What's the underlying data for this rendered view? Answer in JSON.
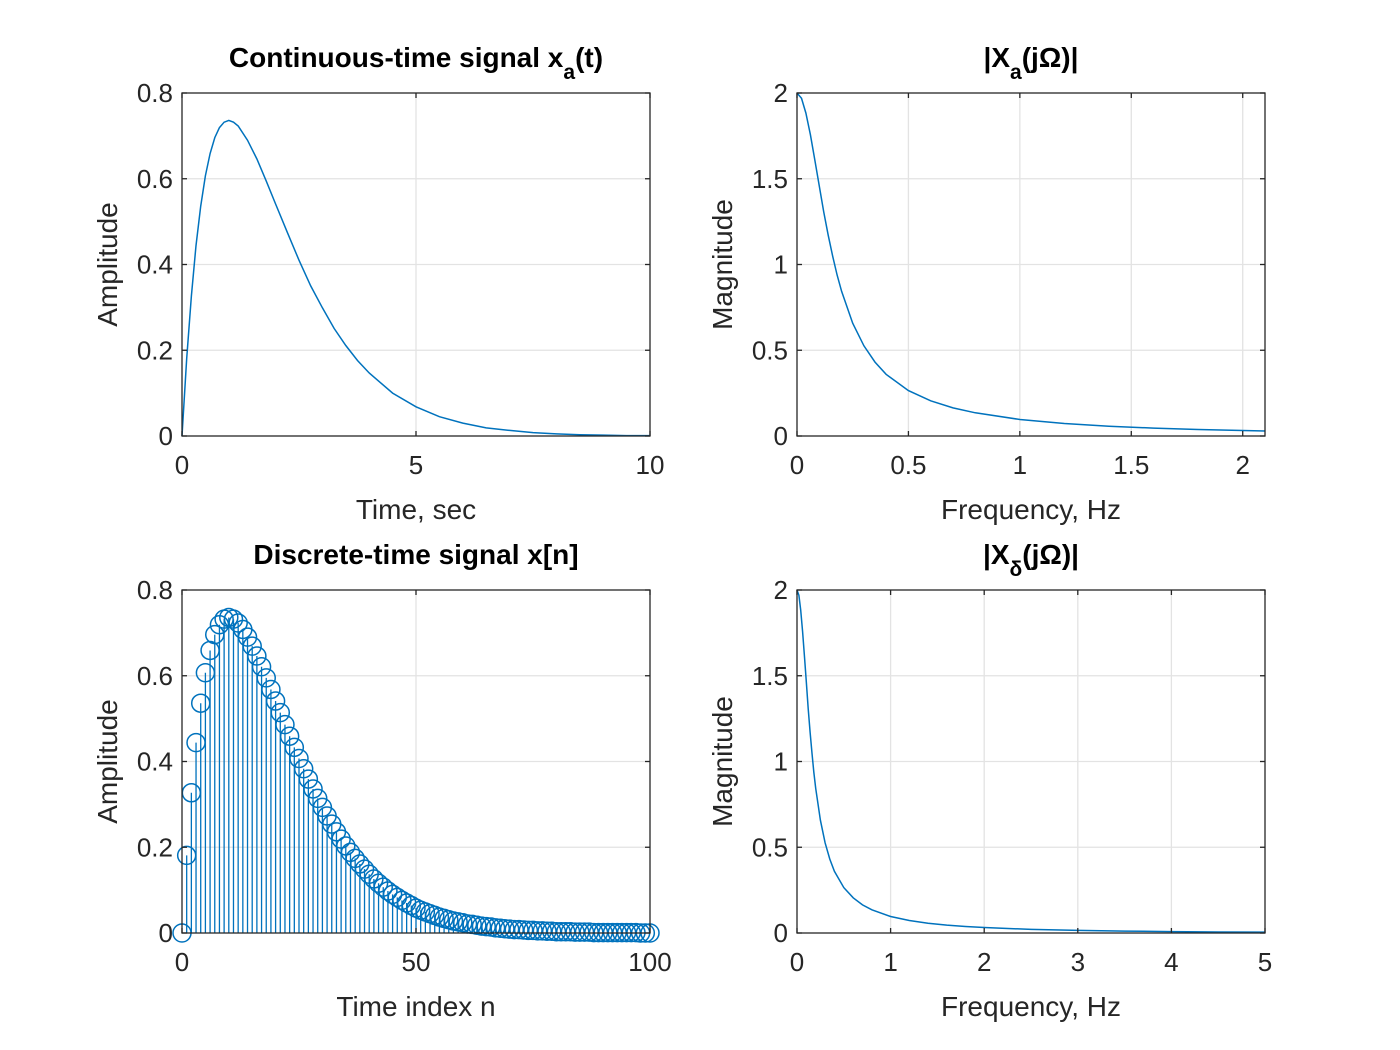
{
  "chart_data": [
    {
      "id": "ax1",
      "type": "line",
      "title": "Continuous-time signal x_a(t)",
      "title_parts": {
        "pre": "Continuous-time signal x",
        "sub": "a",
        "post": "(t)"
      },
      "xlabel": "Time, sec",
      "ylabel": "Amplitude",
      "xlim": [
        0,
        10
      ],
      "ylim": [
        0,
        0.8
      ],
      "xticks": [
        0,
        5,
        10
      ],
      "xticklabels": [
        "0",
        "5",
        "10"
      ],
      "yticks": [
        0,
        0.2,
        0.4,
        0.6,
        0.8
      ],
      "yticklabels": [
        "0",
        "0.2",
        "0.4",
        "0.6",
        "0.8"
      ],
      "grid": true,
      "series": [
        {
          "x": [
            0,
            0.1,
            0.2,
            0.3,
            0.4,
            0.5,
            0.6,
            0.7,
            0.8,
            0.9,
            1.0,
            1.1,
            1.2,
            1.4,
            1.6,
            1.8,
            2.0,
            2.25,
            2.5,
            2.75,
            3.0,
            3.25,
            3.5,
            3.75,
            4.0,
            4.5,
            5.0,
            5.5,
            6.0,
            6.5,
            7.0,
            7.5,
            8.0,
            8.5,
            9.0,
            9.5,
            10.0
          ],
          "y": [
            0,
            0.181,
            0.327,
            0.444,
            0.536,
            0.607,
            0.659,
            0.696,
            0.719,
            0.732,
            0.736,
            0.732,
            0.723,
            0.69,
            0.646,
            0.595,
            0.541,
            0.475,
            0.41,
            0.35,
            0.299,
            0.251,
            0.211,
            0.176,
            0.147,
            0.1,
            0.068,
            0.045,
            0.03,
            0.019,
            0.013,
            0.008,
            0.005,
            0.003,
            0.002,
            0.001,
            0.001
          ]
        }
      ]
    },
    {
      "id": "ax2",
      "type": "line",
      "title": "|X_a(jΩ)|",
      "title_parts": {
        "pre": "|X",
        "sub": "a",
        "post": "(jΩ)|"
      },
      "xlabel": "Frequency, Hz",
      "ylabel": "Magnitude",
      "xlim": [
        0,
        2.1
      ],
      "ylim": [
        0,
        2
      ],
      "xticks": [
        0,
        0.5,
        1,
        1.5,
        2
      ],
      "xticklabels": [
        "0",
        "0.5",
        "1",
        "1.5",
        "2"
      ],
      "yticks": [
        0,
        0.5,
        1,
        1.5,
        2
      ],
      "yticklabels": [
        "0",
        "0.5",
        "1",
        "1.5",
        "2"
      ],
      "grid": true,
      "series": [
        {
          "x": [
            0,
            0.02,
            0.04,
            0.06,
            0.08,
            0.1,
            0.12,
            0.14,
            0.16,
            0.18,
            0.2,
            0.25,
            0.3,
            0.35,
            0.4,
            0.5,
            0.6,
            0.7,
            0.8,
            1.0,
            1.2,
            1.4,
            1.6,
            1.8,
            2.0,
            2.1
          ],
          "y": [
            2.0,
            1.969,
            1.883,
            1.757,
            1.61,
            1.457,
            1.308,
            1.171,
            1.048,
            0.939,
            0.844,
            0.658,
            0.526,
            0.431,
            0.36,
            0.265,
            0.205,
            0.164,
            0.135,
            0.096,
            0.073,
            0.057,
            0.046,
            0.038,
            0.032,
            0.029
          ]
        }
      ]
    },
    {
      "id": "ax3",
      "type": "stem",
      "title": "Discrete-time signal x[n]",
      "title_parts": {
        "pre": "Discrete-time signal x[n]",
        "sub": "",
        "post": ""
      },
      "xlabel": "Time index n",
      "ylabel": "Amplitude",
      "xlim": [
        0,
        100
      ],
      "ylim": [
        0,
        0.8
      ],
      "xticks": [
        0,
        50,
        100
      ],
      "xticklabels": [
        "0",
        "50",
        "100"
      ],
      "yticks": [
        0,
        0.2,
        0.4,
        0.6,
        0.8
      ],
      "yticklabels": [
        "0",
        "0.2",
        "0.4",
        "0.6",
        "0.8"
      ],
      "grid": true,
      "series": [
        {
          "n": [
            0,
            1,
            2,
            3,
            4,
            5,
            6,
            7,
            8,
            9,
            10,
            11,
            12,
            13,
            14,
            15,
            16,
            17,
            18,
            19,
            20,
            21,
            22,
            23,
            24,
            25,
            26,
            27,
            28,
            29,
            30,
            31,
            32,
            33,
            34,
            35,
            36,
            37,
            38,
            39,
            40,
            41,
            42,
            43,
            44,
            45,
            46,
            47,
            48,
            49,
            50,
            51,
            52,
            53,
            54,
            55,
            56,
            57,
            58,
            59,
            60,
            61,
            62,
            63,
            64,
            65,
            66,
            67,
            68,
            69,
            70,
            71,
            72,
            73,
            74,
            75,
            76,
            77,
            78,
            79,
            80,
            81,
            82,
            83,
            84,
            85,
            86,
            87,
            88,
            89,
            90,
            91,
            92,
            93,
            94,
            95,
            96,
            97,
            98,
            99,
            100
          ],
          "y": [
            0,
            0.181,
            0.327,
            0.444,
            0.536,
            0.607,
            0.659,
            0.696,
            0.719,
            0.732,
            0.736,
            0.732,
            0.723,
            0.708,
            0.69,
            0.669,
            0.646,
            0.621,
            0.595,
            0.568,
            0.541,
            0.514,
            0.486,
            0.459,
            0.433,
            0.407,
            0.383,
            0.359,
            0.336,
            0.314,
            0.293,
            0.273,
            0.254,
            0.236,
            0.219,
            0.203,
            0.188,
            0.174,
            0.161,
            0.149,
            0.137,
            0.126,
            0.116,
            0.107,
            0.098,
            0.09,
            0.083,
            0.076,
            0.07,
            0.064,
            0.058,
            0.053,
            0.049,
            0.045,
            0.041,
            0.037,
            0.034,
            0.031,
            0.028,
            0.026,
            0.024,
            0.021,
            0.02,
            0.018,
            0.016,
            0.015,
            0.014,
            0.012,
            0.011,
            0.01,
            0.009,
            0.008,
            0.008,
            0.007,
            0.006,
            0.006,
            0.005,
            0.005,
            0.004,
            0.004,
            0.003,
            0.003,
            0.003,
            0.003,
            0.002,
            0.002,
            0.002,
            0.002,
            0.001,
            0.001,
            0.001,
            0.001,
            0.001,
            0.001,
            0.001,
            0.001,
            0.001,
            0.001,
            0.0,
            0.0,
            0.0
          ]
        }
      ]
    },
    {
      "id": "ax4",
      "type": "line",
      "title": "|X_δ(jΩ)|",
      "title_parts": {
        "pre": "|X",
        "sub": "δ",
        "post": "(jΩ)|"
      },
      "xlabel": "Frequency, Hz",
      "ylabel": "Magnitude",
      "xlim": [
        0,
        5
      ],
      "ylim": [
        0,
        2
      ],
      "xticks": [
        0,
        1,
        2,
        3,
        4,
        5
      ],
      "xticklabels": [
        "0",
        "1",
        "2",
        "3",
        "4",
        "5"
      ],
      "yticks": [
        0,
        0.5,
        1,
        1.5,
        2
      ],
      "yticklabels": [
        "0",
        "0.5",
        "1",
        "1.5",
        "2"
      ],
      "grid": true,
      "series": [
        {
          "x": [
            0,
            0.02,
            0.04,
            0.06,
            0.08,
            0.1,
            0.12,
            0.14,
            0.16,
            0.18,
            0.2,
            0.25,
            0.3,
            0.35,
            0.4,
            0.5,
            0.6,
            0.7,
            0.8,
            1.0,
            1.2,
            1.4,
            1.6,
            1.8,
            2.0,
            2.5,
            3.0,
            3.5,
            4.0,
            4.5,
            5.0
          ],
          "y": [
            2.0,
            1.969,
            1.883,
            1.757,
            1.61,
            1.457,
            1.308,
            1.171,
            1.048,
            0.939,
            0.844,
            0.658,
            0.526,
            0.431,
            0.36,
            0.265,
            0.205,
            0.164,
            0.135,
            0.096,
            0.073,
            0.057,
            0.046,
            0.038,
            0.032,
            0.021,
            0.015,
            0.011,
            0.008,
            0.006,
            0.005
          ]
        }
      ]
    }
  ]
}
